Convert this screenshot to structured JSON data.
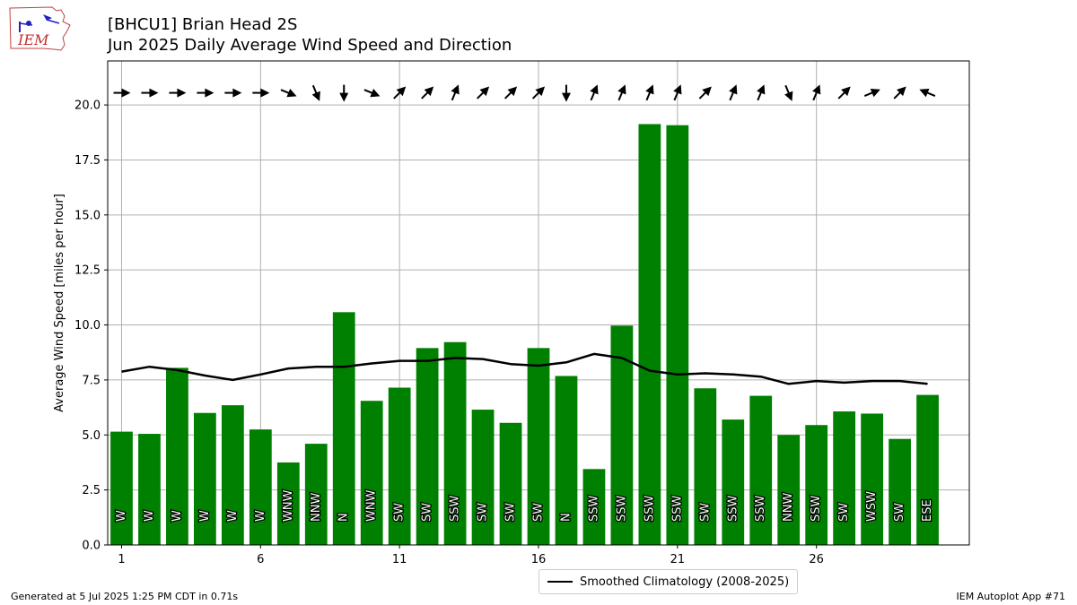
{
  "header": {
    "title_line1": "[BHCU1] Brian Head 2S",
    "title_line2": "Jun 2025 Daily Average Wind Speed and Direction"
  },
  "logo": {
    "text": "IEM"
  },
  "footer": {
    "generated": "Generated at 5 Jul 2025 1:25 PM CDT in 0.71s",
    "app": "IEM Autoplot App #71"
  },
  "legend": {
    "label": "Smoothed Climatology (2008-2025)"
  },
  "colors": {
    "bar": "#008000",
    "line": "#000000",
    "grid": "#b0b0b0"
  },
  "chart_data": {
    "type": "bar",
    "ylabel": "Average Wind Speed [miles per hour]",
    "xlim": [
      0.5,
      31.5
    ],
    "ylim": [
      0,
      22
    ],
    "xticks": [
      1,
      6,
      11,
      16,
      21,
      26
    ],
    "yticks": [
      0.0,
      2.5,
      5.0,
      7.5,
      10.0,
      12.5,
      15.0,
      17.5,
      20.0
    ],
    "grid": true,
    "legend_position": "bottom-center",
    "days": [
      1,
      2,
      3,
      4,
      5,
      6,
      7,
      8,
      9,
      10,
      11,
      12,
      13,
      14,
      15,
      16,
      17,
      18,
      19,
      20,
      21,
      22,
      23,
      24,
      25,
      26,
      27,
      28,
      29,
      30
    ],
    "series": [
      {
        "name": "Smoothed Climatology (2008-2025)",
        "type": "line",
        "values": [
          7.88,
          8.1,
          7.95,
          7.7,
          7.5,
          7.75,
          8.02,
          8.1,
          8.1,
          8.25,
          8.37,
          8.37,
          8.5,
          8.45,
          8.22,
          8.15,
          8.3,
          8.68,
          8.5,
          7.92,
          7.75,
          7.8,
          7.75,
          7.65,
          7.32,
          7.45,
          7.38,
          7.45,
          7.45,
          7.32
        ]
      }
    ],
    "values": [
      5.15,
      5.05,
      8.05,
      6.0,
      6.35,
      5.25,
      3.75,
      4.6,
      10.58,
      6.55,
      7.15,
      8.95,
      9.22,
      6.15,
      5.55,
      8.95,
      7.68,
      3.45,
      9.97,
      19.13,
      19.08,
      7.12,
      5.7,
      6.78,
      5.0,
      5.45,
      6.07,
      5.97,
      4.82,
      6.82
    ],
    "direction_labels": [
      "W",
      "W",
      "W",
      "W",
      "W",
      "W",
      "WNW",
      "NNW",
      "N",
      "WNW",
      "SW",
      "SW",
      "SSW",
      "SW",
      "SW",
      "SW",
      "N",
      "SSW",
      "SSW",
      "SSW",
      "SSW",
      "SW",
      "SSW",
      "SSW",
      "NNW",
      "SSW",
      "SW",
      "WSW",
      "SW",
      "ESE"
    ]
  }
}
